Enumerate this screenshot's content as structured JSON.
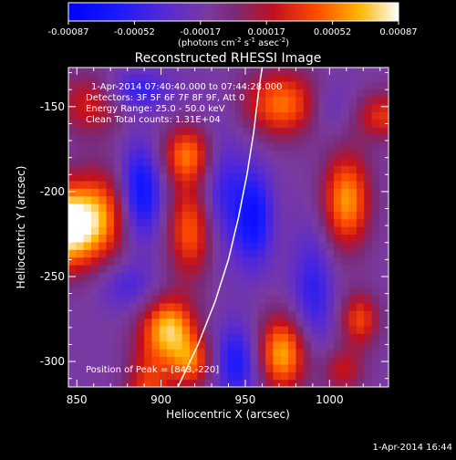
{
  "chart_data": {
    "type": "heatmap",
    "title": "Reconstructed RHESSI Image",
    "xlabel": "Heliocentric X (arcsec)",
    "ylabel": "Heliocentric Y (arcsec)",
    "xlim": [
      845,
      1035
    ],
    "ylim": [
      -315,
      -127
    ],
    "x_ticks": [
      850,
      900,
      950,
      1000
    ],
    "y_ticks": [
      -150,
      -200,
      -250,
      -300
    ],
    "grid": false,
    "annotations": [
      "1-Apr-2014 07:40:40.000 to 07:44:28.000",
      "Detectors: 3F 5F 6F 7F 8F 9F, Att 0",
      "Energy Range: 25.0 - 50.0 keV",
      "Clean    Total counts: 1.31E+04"
    ],
    "peak_label": "Position of Peak = [843,-220]",
    "colorbar": {
      "min": -0.00087,
      "max": 0.00087,
      "tick_labels": [
        "-0.00087",
        "-0.00052",
        "-0.00017",
        "0.00017",
        "0.00052",
        "0.00087"
      ],
      "label_main": "(photons cm",
      "label_sup1": "-2",
      "label_mid1": " s",
      "label_sup2": "-1",
      "label_mid2": " asec",
      "label_sup3": "-2",
      "label_end": ")"
    },
    "limb_curve": [
      [
        910,
        -315
      ],
      [
        922,
        -290
      ],
      [
        932,
        -265
      ],
      [
        940,
        -240
      ],
      [
        946,
        -215
      ],
      [
        951,
        -190
      ],
      [
        955,
        -165
      ],
      [
        958,
        -140
      ],
      [
        960,
        -127
      ]
    ],
    "peak_position": [
      843,
      -220
    ],
    "blobs": [
      {
        "x": 843,
        "y": -220,
        "sx": 13,
        "sy": 17,
        "a": 1.0
      },
      {
        "x": 865,
        "y": -214,
        "sx": 12,
        "sy": 19,
        "a": 0.55
      },
      {
        "x": 893,
        "y": -320,
        "sx": 10,
        "sy": 22,
        "a": 0.5
      },
      {
        "x": 905,
        "y": -280,
        "sx": 11,
        "sy": 13,
        "a": 0.75
      },
      {
        "x": 918,
        "y": -300,
        "sx": 9,
        "sy": 11,
        "a": 0.55
      },
      {
        "x": 916,
        "y": -178,
        "sx": 11,
        "sy": 12,
        "a": 0.62
      },
      {
        "x": 918,
        "y": -222,
        "sx": 10,
        "sy": 20,
        "a": 0.6
      },
      {
        "x": 972,
        "y": -148,
        "sx": 16,
        "sy": 14,
        "a": 0.62
      },
      {
        "x": 972,
        "y": -295,
        "sx": 11,
        "sy": 16,
        "a": 0.75
      },
      {
        "x": 1010,
        "y": -205,
        "sx": 10,
        "sy": 20,
        "a": 0.7
      },
      {
        "x": 1018,
        "y": -275,
        "sx": 8,
        "sy": 11,
        "a": 0.5
      },
      {
        "x": 1032,
        "y": -155,
        "sx": 12,
        "sy": 10,
        "a": 0.45
      },
      {
        "x": 858,
        "y": -148,
        "sx": 14,
        "sy": 13,
        "a": 0.4
      },
      {
        "x": 1008,
        "y": -305,
        "sx": 9,
        "sy": 10,
        "a": 0.35
      },
      {
        "x": 888,
        "y": -200,
        "sx": 9,
        "sy": 20,
        "a": -0.55
      },
      {
        "x": 885,
        "y": -140,
        "sx": 14,
        "sy": 8,
        "a": -0.35
      },
      {
        "x": 935,
        "y": -200,
        "sx": 10,
        "sy": 26,
        "a": -0.35
      },
      {
        "x": 955,
        "y": -215,
        "sx": 8,
        "sy": 20,
        "a": -0.5
      },
      {
        "x": 945,
        "y": -300,
        "sx": 10,
        "sy": 16,
        "a": -0.45
      },
      {
        "x": 990,
        "y": -260,
        "sx": 9,
        "sy": 26,
        "a": -0.35
      },
      {
        "x": 1000,
        "y": -150,
        "sx": 10,
        "sy": 12,
        "a": -0.2
      },
      {
        "x": 880,
        "y": -255,
        "sx": 12,
        "sy": 10,
        "a": -0.25
      }
    ]
  },
  "footer": {
    "timestamp": "1-Apr-2014 16:44"
  }
}
